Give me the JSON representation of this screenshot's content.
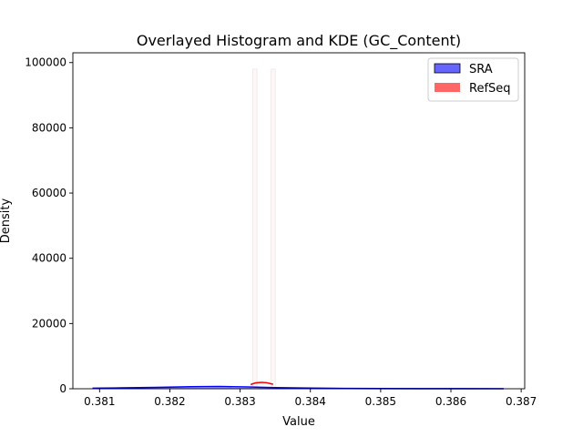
{
  "chart_data": {
    "type": "histogram",
    "title": "Overlayed Histogram and KDE (GC_Content)",
    "xlabel": "Value",
    "ylabel": "Density",
    "xlim": [
      0.38062,
      0.38705
    ],
    "ylim": [
      0,
      103000
    ],
    "x_ticks": [
      0.381,
      0.382,
      0.383,
      0.384,
      0.385,
      0.386,
      0.387
    ],
    "x_tick_labels": [
      "0.381",
      "0.382",
      "0.383",
      "0.384",
      "0.385",
      "0.386",
      "0.387"
    ],
    "y_ticks": [
      0,
      20000,
      40000,
      60000,
      80000,
      100000
    ],
    "y_tick_labels": [
      "0",
      "20000",
      "40000",
      "60000",
      "80000",
      "100000"
    ],
    "grid": false,
    "legend_position": "top-right",
    "series": [
      {
        "name": "SRA",
        "color": "#0000ff",
        "fill": "#6666ff",
        "bins": [
          {
            "x0": 0.3809,
            "x1": 0.38675,
            "value": 120
          }
        ],
        "kde_points": [
          [
            0.3809,
            150
          ],
          [
            0.3813,
            250
          ],
          [
            0.3818,
            420
          ],
          [
            0.3823,
            600
          ],
          [
            0.3827,
            680
          ],
          [
            0.3831,
            560
          ],
          [
            0.3835,
            350
          ],
          [
            0.384,
            180
          ],
          [
            0.3845,
            90
          ],
          [
            0.385,
            50
          ],
          [
            0.3856,
            20
          ],
          [
            0.3862,
            5
          ],
          [
            0.38675,
            0
          ]
        ]
      },
      {
        "name": "RefSeq",
        "color": "#ff0000",
        "fill": "#ff6666",
        "bins": [
          {
            "x0": 0.38318,
            "x1": 0.38324,
            "value": 98000
          },
          {
            "x0": 0.38344,
            "x1": 0.3835,
            "value": 98000
          }
        ],
        "kde_points": [
          [
            0.38315,
            1300
          ],
          [
            0.38322,
            1800
          ],
          [
            0.3833,
            1950
          ],
          [
            0.38338,
            1850
          ],
          [
            0.38347,
            1350
          ]
        ]
      }
    ]
  }
}
